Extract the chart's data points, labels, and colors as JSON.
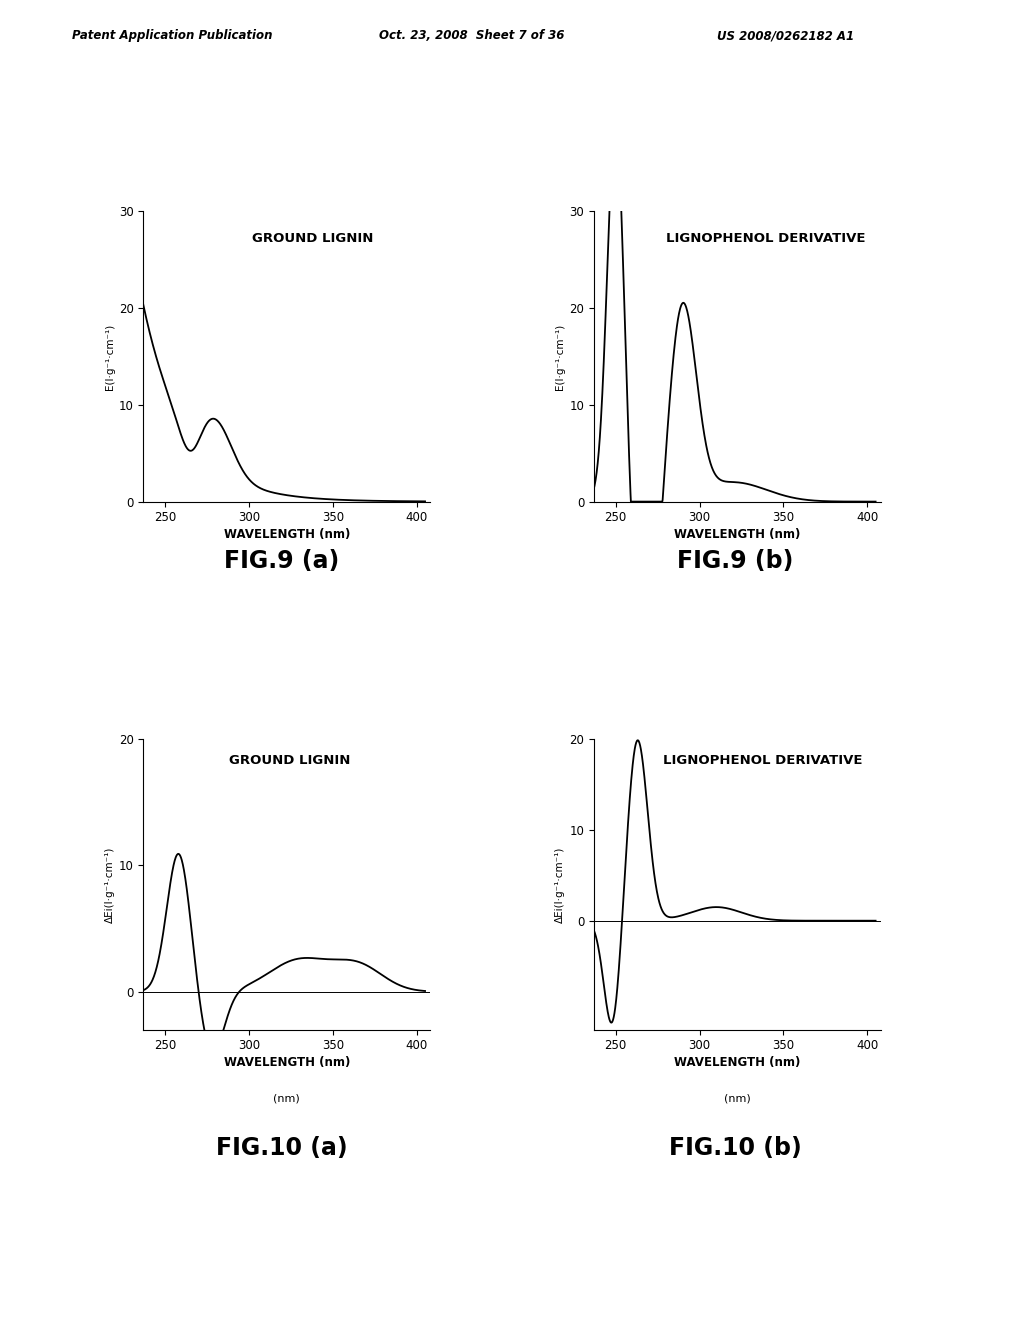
{
  "header_left": "Patent Application Publication",
  "header_mid": "Oct. 23, 2008  Sheet 7 of 36",
  "header_right": "US 2008/0262182 A1",
  "fig9a_label": "GROUND LIGNIN",
  "fig9b_label": "LIGNOPHENOL DERIVATIVE",
  "fig10a_label": "GROUND LIGNIN",
  "fig10b_label": "LIGNOPHENOL DERIVATIVE",
  "fig9a_title": "FIG.9 (a)",
  "fig9b_title": "FIG.9 (b)",
  "fig10a_title": "FIG.10 (a)",
  "fig10b_title": "FIG.10 (b)",
  "background_color": "#ffffff",
  "line_color": "#000000"
}
